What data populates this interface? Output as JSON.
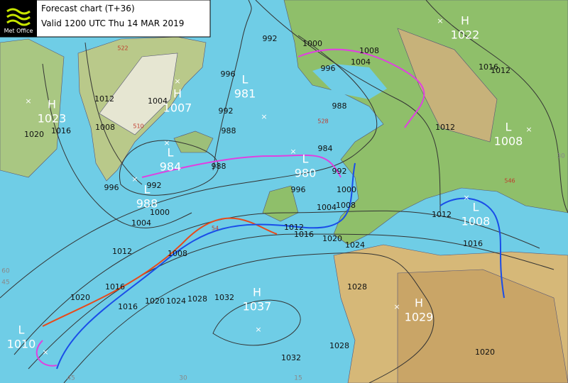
{
  "header": {
    "logo": "Met Office",
    "title": "Forecast chart (T+36)",
    "valid": "Valid 1200 UTC Thu 14 MAR 2019"
  },
  "centers": [
    {
      "type": "H",
      "value": "1022"
    },
    {
      "type": "H",
      "value": "1023"
    },
    {
      "type": "H",
      "value": "1007"
    },
    {
      "type": "L",
      "value": "981"
    },
    {
      "type": "L",
      "value": "984"
    },
    {
      "type": "L",
      "value": "988"
    },
    {
      "type": "L",
      "value": "980"
    },
    {
      "type": "L",
      "value": "1008"
    },
    {
      "type": "L",
      "value": "1008"
    },
    {
      "type": "H",
      "value": "1037"
    },
    {
      "type": "H",
      "value": "1029"
    },
    {
      "type": "L",
      "value": "1010"
    }
  ],
  "isobar_labels": [
    "992",
    "1000",
    "1008",
    "1004",
    "996",
    "988",
    "984",
    "992",
    "1000",
    "1008",
    "1004",
    "1012",
    "1016",
    "1020",
    "1024",
    "1028",
    "1032",
    "1028",
    "1020",
    "1016",
    "1012",
    "1012",
    "1016",
    "1012",
    "996",
    "992",
    "988",
    "988",
    "996",
    "1004",
    "1008",
    "1012",
    "1016",
    "1020",
    "996",
    "992",
    "1000",
    "1004",
    "1012",
    "1008",
    "1016",
    "1020",
    "1016",
    "1020",
    "1024",
    "1028",
    "1032"
  ],
  "thickness_labels": [
    "522",
    "510",
    "528",
    "546",
    "54"
  ],
  "grid_labels": [
    "60",
    "45",
    "45",
    "30",
    "15",
    "30"
  ]
}
